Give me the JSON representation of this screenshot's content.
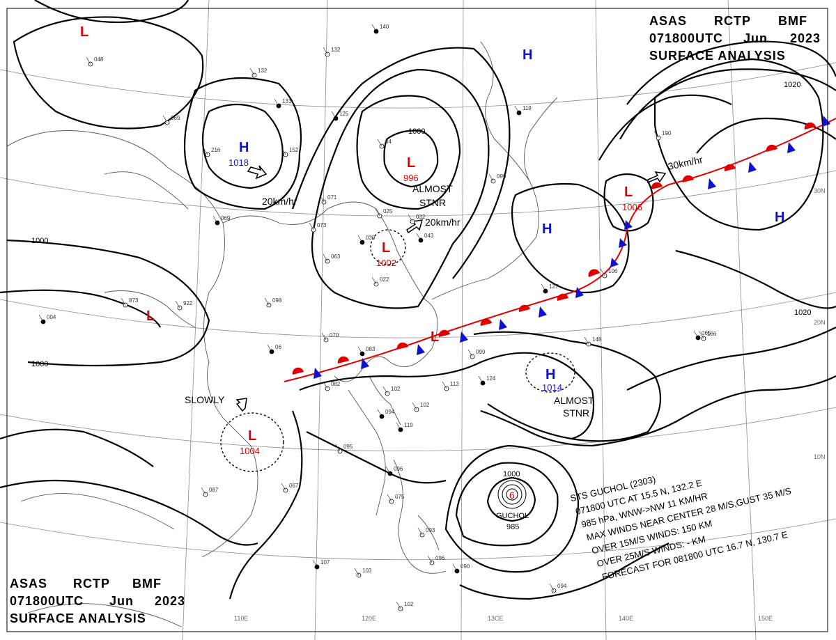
{
  "header": {
    "line1": [
      "ASAS",
      "RCTP",
      "BMF"
    ],
    "line2": [
      "071800UTC",
      "Jun",
      "2023"
    ],
    "line3": "SURFACE ANALYSIS"
  },
  "colors": {
    "low": "#e00000",
    "high": "#1010d0",
    "isobar": "#000000",
    "coast": "#555555"
  },
  "pressure_systems": [
    {
      "type": "L",
      "value": ""
    },
    {
      "type": "H",
      "value": "1018"
    },
    {
      "type": "L",
      "value": "996"
    },
    {
      "type": "L",
      "value": "1002"
    },
    {
      "type": "H",
      "value": ""
    },
    {
      "type": "H",
      "value": ""
    },
    {
      "type": "L",
      "value": "1006"
    },
    {
      "type": "H",
      "value": ""
    },
    {
      "type": "L",
      "value": ""
    },
    {
      "type": "L",
      "value": ""
    },
    {
      "type": "H",
      "value": "1014"
    },
    {
      "type": "L",
      "value": "1004"
    }
  ],
  "movement_labels": [
    "20km/hr",
    "20km/hr",
    "30km/hr",
    "SLOWLY"
  ],
  "notes": {
    "almost1_a": "ALMOST",
    "almost1_b": "STNR",
    "almost2_a": "ALMOST",
    "almost2_b": "STNR"
  },
  "isobar_labels": [
    "1000",
    "1000",
    "1000",
    "1020",
    "1020",
    "1000"
  ],
  "lat_labels": [
    "30N",
    "20N",
    "10N"
  ],
  "lon_labels": [
    "110E",
    "120E",
    "13CE",
    "140E",
    "150E"
  ],
  "typhoon": {
    "name": "GUCHOL",
    "pressure": "985",
    "info": [
      "STS  GUCHOL  (2303)",
      "071800 UTC  AT 15.5 N, 132.2 E",
      "985 hPa, WNW->NW  11 KM/HR",
      "MAX WINDS NEAR CENTER 28 M/S,GUST 35 M/S",
      "OVER 15M/S WINDS: 150 KM",
      "OVER 25M/S WINDS: - KM",
      "FORECAST FOR 081800 UTC 16.7 N, 130.7 E"
    ]
  },
  "stations": [
    "140",
    "132",
    "132",
    "131",
    "216",
    "152",
    "125",
    "04",
    "069",
    "069",
    "071",
    "073",
    "030",
    "025",
    "032",
    "043",
    "063",
    "098",
    "06",
    "070",
    "022",
    "083",
    "082",
    "102",
    "094",
    "095",
    "099",
    "124",
    "113",
    "102",
    "119",
    "087",
    "067",
    "096",
    "075",
    "093",
    "107",
    "103",
    "096",
    "090",
    "102",
    "094",
    "065",
    "148",
    "166",
    "127",
    "106",
    "099",
    "119",
    "190",
    "048",
    "004",
    "873",
    "922"
  ]
}
